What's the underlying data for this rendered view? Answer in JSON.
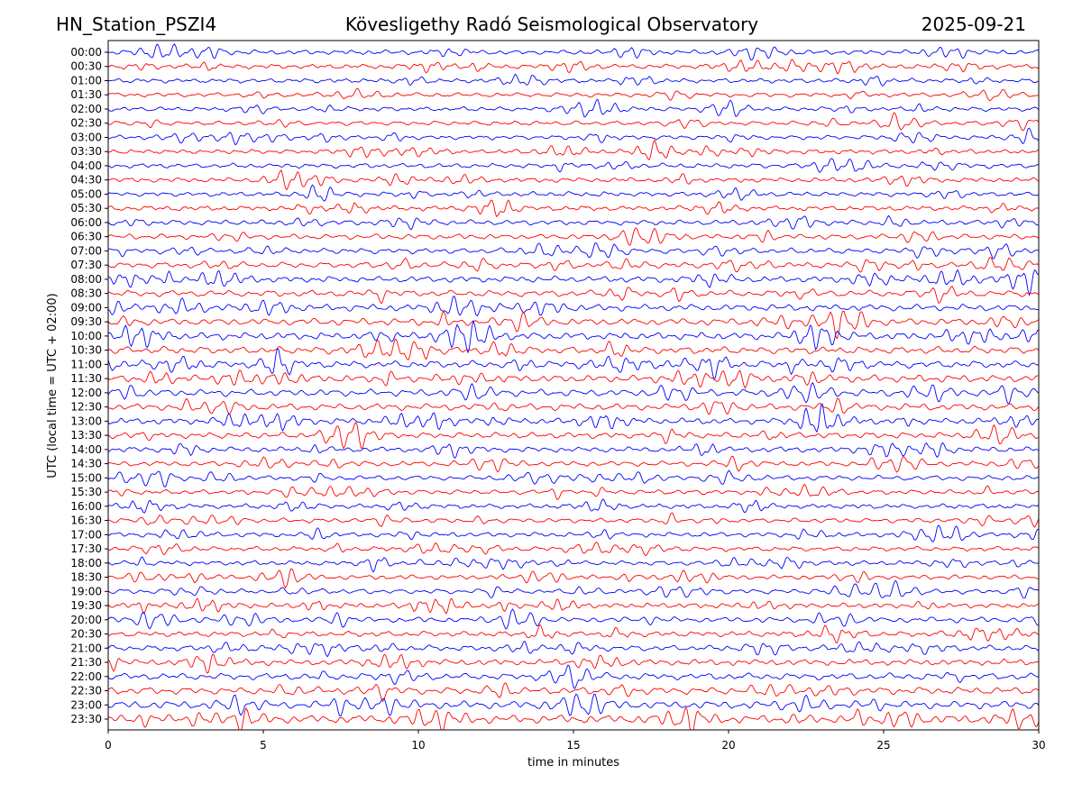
{
  "header": {
    "station": "HN_Station_PSZI4",
    "observatory": "Kövesligethy Radó Seismological Observatory",
    "date": "2025-09-21"
  },
  "colors": {
    "trace_a": "#0000ff",
    "trace_b": "#ff0000",
    "axes": "#000000",
    "background": "#ffffff"
  },
  "chart_data": {
    "type": "line",
    "subtype": "helicorder",
    "xlabel": "time in minutes",
    "ylabel": "UTC (local time = UTC + 02:00)",
    "xlim": [
      0,
      30
    ],
    "x_ticks": [
      "0",
      "5",
      "10",
      "15",
      "20",
      "25",
      "30"
    ],
    "rows": [
      "00:00",
      "00:30",
      "01:00",
      "01:30",
      "02:00",
      "02:30",
      "03:00",
      "03:30",
      "04:00",
      "04:30",
      "05:00",
      "05:30",
      "06:00",
      "06:30",
      "07:00",
      "07:30",
      "08:00",
      "08:30",
      "09:00",
      "09:30",
      "10:00",
      "10:30",
      "11:00",
      "11:30",
      "12:00",
      "12:30",
      "13:00",
      "13:30",
      "14:00",
      "14:30",
      "15:00",
      "15:30",
      "16:00",
      "16:30",
      "17:00",
      "17:30",
      "18:00",
      "18:30",
      "19:00",
      "19:30",
      "20:00",
      "20:30",
      "21:00",
      "21:30",
      "22:00",
      "22:30",
      "23:00",
      "23:30"
    ],
    "trace_colors_alternating": [
      "blue",
      "red"
    ],
    "grid": false,
    "row_activity": [
      0.55,
      0.55,
      0.5,
      0.5,
      0.5,
      0.5,
      0.5,
      0.5,
      0.55,
      0.55,
      0.55,
      0.6,
      0.65,
      0.65,
      0.7,
      0.75,
      0.8,
      0.85,
      0.9,
      0.95,
      1.0,
      1.0,
      1.0,
      1.0,
      0.95,
      0.9,
      0.85,
      0.8,
      0.7,
      0.65,
      0.6,
      0.55,
      0.55,
      0.55,
      0.55,
      0.55,
      0.55,
      0.55,
      0.6,
      0.6,
      0.65,
      0.7,
      0.75,
      0.8,
      0.9,
      1.0,
      1.1,
      1.2
    ]
  }
}
